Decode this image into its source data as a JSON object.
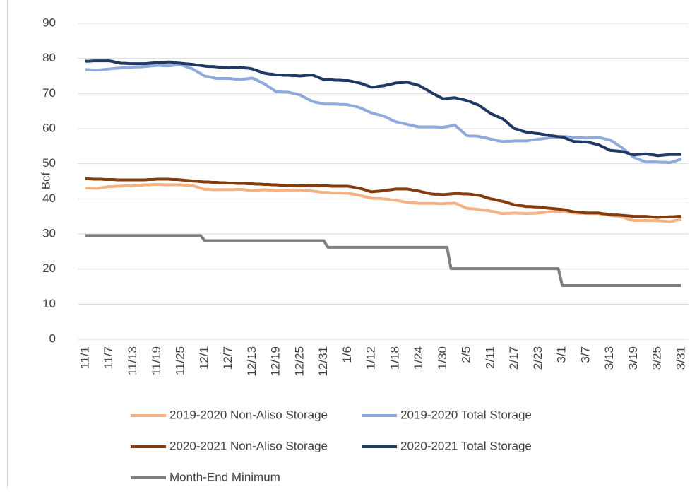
{
  "chart_data": {
    "type": "line",
    "y_label": "Bcf",
    "ylim": [
      0,
      90
    ],
    "yticks": [
      0,
      10,
      20,
      30,
      40,
      50,
      60,
      70,
      80,
      90
    ],
    "grid": true,
    "categories": [
      "11/1",
      null,
      null,
      null,
      null,
      null,
      "11/7",
      null,
      null,
      null,
      null,
      null,
      "11/13",
      null,
      null,
      null,
      null,
      null,
      "11/19",
      null,
      null,
      null,
      null,
      null,
      "11/25",
      null,
      null,
      null,
      null,
      null,
      "12/1",
      null,
      null,
      null,
      null,
      null,
      "12/7",
      null,
      null,
      null,
      null,
      null,
      "12/13",
      null,
      null,
      null,
      null,
      null,
      "12/19",
      null,
      null,
      null,
      null,
      null,
      "12/25",
      null,
      null,
      null,
      null,
      null,
      "12/31",
      null,
      null,
      null,
      null,
      null,
      "1/6",
      null,
      null,
      null,
      null,
      null,
      "1/12",
      null,
      null,
      null,
      null,
      null,
      "1/18",
      null,
      null,
      null,
      null,
      null,
      "1/24",
      null,
      null,
      null,
      null,
      null,
      "1/30",
      null,
      null,
      null,
      null,
      null,
      "2/5",
      null,
      null,
      null,
      null,
      null,
      "2/11",
      null,
      null,
      null,
      null,
      null,
      "2/17",
      null,
      null,
      null,
      null,
      null,
      "2/23",
      null,
      null,
      null,
      null,
      null,
      "3/1",
      null,
      null,
      null,
      null,
      null,
      "3/7",
      null,
      null,
      null,
      null,
      null,
      "3/13",
      null,
      null,
      null,
      null,
      null,
      "3/19",
      null,
      null,
      null,
      null,
      null,
      "3/25",
      null,
      null,
      null,
      null,
      null,
      "3/31"
    ],
    "series": [
      {
        "name": "2019-2020 Non-Aliso Storage",
        "color": "#f4b183",
        "values": [
          43.1,
          43.1,
          43.0,
          43.0,
          43.2,
          43.3,
          43.5,
          43.5,
          43.6,
          43.6,
          43.7,
          43.7,
          43.8,
          43.9,
          43.9,
          44.0,
          44.0,
          44.1,
          44.1,
          44.1,
          44.0,
          44.0,
          44.0,
          44.0,
          44.0,
          43.9,
          43.9,
          43.8,
          43.4,
          43.1,
          42.7,
          42.7,
          42.6,
          42.6,
          42.6,
          42.6,
          42.6,
          42.6,
          42.7,
          42.7,
          42.6,
          42.4,
          42.3,
          42.4,
          42.5,
          42.6,
          42.5,
          42.5,
          42.4,
          42.4,
          42.5,
          42.5,
          42.5,
          42.5,
          42.5,
          42.4,
          42.3,
          42.2,
          42.1,
          41.9,
          41.8,
          41.8,
          41.7,
          41.7,
          41.7,
          41.6,
          41.6,
          41.4,
          41.2,
          41.0,
          40.7,
          40.5,
          40.2,
          40.1,
          40.1,
          40.0,
          39.9,
          39.7,
          39.6,
          39.4,
          39.2,
          39.0,
          38.9,
          38.8,
          38.7,
          38.7,
          38.7,
          38.7,
          38.7,
          38.6,
          38.6,
          38.7,
          38.7,
          38.8,
          38.3,
          37.8,
          37.3,
          37.2,
          37.1,
          37.0,
          36.8,
          36.7,
          36.5,
          36.3,
          36.0,
          35.8,
          35.9,
          35.9,
          36.0,
          35.9,
          35.9,
          35.8,
          35.9,
          35.9,
          36.0,
          36.1,
          36.2,
          36.3,
          36.4,
          36.4,
          36.5,
          36.3,
          36.2,
          36.0,
          35.9,
          35.9,
          35.8,
          35.8,
          35.8,
          35.8,
          35.6,
          35.5,
          35.3,
          35.1,
          35.0,
          34.8,
          34.5,
          34.1,
          33.8,
          33.8,
          33.8,
          33.8,
          33.8,
          33.8,
          33.8,
          33.7,
          33.6,
          33.5,
          33.7,
          34.0,
          34.2
        ]
      },
      {
        "name": "2019-2020 Total Storage",
        "color": "#8faadc",
        "values": [
          76.8,
          76.8,
          76.7,
          76.7,
          76.8,
          76.9,
          77.0,
          77.1,
          77.2,
          77.3,
          77.4,
          77.4,
          77.5,
          77.6,
          77.6,
          77.7,
          77.8,
          77.9,
          78.0,
          78.0,
          77.9,
          77.9,
          78.0,
          78.1,
          78.2,
          77.8,
          77.4,
          77.0,
          76.3,
          75.7,
          75.0,
          74.8,
          74.5,
          74.3,
          74.3,
          74.3,
          74.3,
          74.2,
          74.1,
          74.0,
          74.1,
          74.3,
          74.4,
          73.9,
          73.3,
          72.8,
          72.0,
          71.3,
          70.5,
          70.5,
          70.4,
          70.4,
          70.1,
          69.9,
          69.6,
          69.0,
          68.4,
          67.8,
          67.5,
          67.3,
          67.0,
          67.0,
          67.0,
          67.0,
          66.9,
          66.9,
          66.8,
          66.5,
          66.3,
          66.0,
          65.5,
          65.0,
          64.5,
          64.2,
          63.9,
          63.6,
          63.1,
          62.5,
          62.0,
          61.7,
          61.5,
          61.2,
          61.0,
          60.7,
          60.5,
          60.5,
          60.5,
          60.5,
          60.5,
          60.4,
          60.4,
          60.6,
          60.8,
          61.0,
          60.0,
          59.0,
          58.0,
          57.9,
          57.9,
          57.8,
          57.5,
          57.3,
          57.0,
          56.8,
          56.5,
          56.3,
          56.4,
          56.4,
          56.5,
          56.5,
          56.5,
          56.5,
          56.7,
          56.8,
          57.0,
          57.1,
          57.3,
          57.4,
          57.5,
          57.7,
          57.8,
          57.7,
          57.6,
          57.5,
          57.4,
          57.4,
          57.3,
          57.4,
          57.4,
          57.5,
          57.3,
          57.0,
          56.8,
          56.1,
          55.3,
          54.6,
          53.7,
          52.7,
          51.8,
          51.4,
          50.9,
          50.5,
          50.5,
          50.5,
          50.5,
          50.4,
          50.4,
          50.3,
          50.6,
          51.0,
          51.3
        ]
      },
      {
        "name": "2020-2021 Non-Aliso Storage",
        "color": "#843c0c",
        "values": [
          45.7,
          45.7,
          45.6,
          45.6,
          45.6,
          45.5,
          45.5,
          45.5,
          45.4,
          45.4,
          45.4,
          45.4,
          45.4,
          45.4,
          45.4,
          45.4,
          45.5,
          45.5,
          45.6,
          45.6,
          45.6,
          45.6,
          45.5,
          45.5,
          45.4,
          45.3,
          45.2,
          45.1,
          45.0,
          44.9,
          44.8,
          44.8,
          44.7,
          44.7,
          44.6,
          44.6,
          44.5,
          44.5,
          44.4,
          44.4,
          44.4,
          44.3,
          44.3,
          44.2,
          44.2,
          44.1,
          44.1,
          44.0,
          44.0,
          43.9,
          43.9,
          43.8,
          43.8,
          43.7,
          43.7,
          43.7,
          43.8,
          43.8,
          43.8,
          43.7,
          43.7,
          43.7,
          43.6,
          43.6,
          43.6,
          43.6,
          43.6,
          43.4,
          43.2,
          43.0,
          42.7,
          42.3,
          42.0,
          42.1,
          42.2,
          42.3,
          42.5,
          42.6,
          42.8,
          42.8,
          42.8,
          42.8,
          42.6,
          42.4,
          42.2,
          41.9,
          41.7,
          41.4,
          41.3,
          41.3,
          41.2,
          41.3,
          41.4,
          41.5,
          41.5,
          41.4,
          41.4,
          41.3,
          41.1,
          41.0,
          40.7,
          40.3,
          40.0,
          39.8,
          39.5,
          39.3,
          39.0,
          38.6,
          38.3,
          38.1,
          38.0,
          37.8,
          37.8,
          37.7,
          37.7,
          37.6,
          37.4,
          37.3,
          37.2,
          37.1,
          37.0,
          36.8,
          36.5,
          36.3,
          36.2,
          36.1,
          36.0,
          36.0,
          36.0,
          36.0,
          35.8,
          35.7,
          35.5,
          35.4,
          35.4,
          35.3,
          35.2,
          35.1,
          35.0,
          35.0,
          35.0,
          35.0,
          34.9,
          34.8,
          34.7,
          34.8,
          34.8,
          34.9,
          34.9,
          35.0,
          35.0
        ]
      },
      {
        "name": "2020-2021 Total Storage",
        "color": "#203864",
        "values": [
          79.2,
          79.2,
          79.3,
          79.3,
          79.3,
          79.3,
          79.3,
          79.1,
          78.8,
          78.6,
          78.6,
          78.5,
          78.5,
          78.5,
          78.5,
          78.5,
          78.6,
          78.7,
          78.8,
          78.9,
          78.9,
          79.0,
          78.9,
          78.7,
          78.6,
          78.5,
          78.4,
          78.3,
          78.1,
          78.0,
          77.8,
          77.7,
          77.7,
          77.6,
          77.5,
          77.4,
          77.3,
          77.4,
          77.4,
          77.5,
          77.3,
          77.2,
          77.0,
          76.6,
          76.2,
          75.8,
          75.6,
          75.5,
          75.3,
          75.3,
          75.2,
          75.2,
          75.1,
          75.1,
          75.0,
          75.1,
          75.2,
          75.3,
          74.9,
          74.4,
          74.0,
          73.9,
          73.9,
          73.8,
          73.8,
          73.7,
          73.7,
          73.5,
          73.2,
          73.0,
          72.6,
          72.2,
          71.8,
          71.9,
          72.1,
          72.2,
          72.5,
          72.7,
          73.0,
          73.1,
          73.1,
          73.2,
          72.9,
          72.6,
          72.3,
          71.6,
          71.0,
          70.3,
          69.7,
          69.1,
          68.5,
          68.6,
          68.7,
          68.8,
          68.5,
          68.3,
          68.0,
          67.6,
          67.1,
          66.7,
          65.9,
          65.1,
          64.3,
          63.8,
          63.3,
          62.8,
          61.9,
          60.9,
          60.0,
          59.7,
          59.3,
          59.0,
          58.9,
          58.7,
          58.6,
          58.4,
          58.2,
          58.0,
          57.9,
          57.7,
          57.6,
          57.2,
          56.7,
          56.3,
          56.3,
          56.2,
          56.2,
          56.0,
          55.7,
          55.5,
          54.9,
          54.4,
          53.8,
          53.7,
          53.6,
          53.5,
          53.2,
          52.8,
          52.5,
          52.6,
          52.7,
          52.8,
          52.6,
          52.5,
          52.3,
          52.4,
          52.5,
          52.6,
          52.6,
          52.6,
          52.6
        ]
      },
      {
        "name": "Month-End Minimum",
        "color": "#7f7f7f",
        "values": [
          29.5,
          29.5,
          29.5,
          29.5,
          29.5,
          29.5,
          29.5,
          29.5,
          29.5,
          29.5,
          29.5,
          29.5,
          29.5,
          29.5,
          29.5,
          29.5,
          29.5,
          29.5,
          29.5,
          29.5,
          29.5,
          29.5,
          29.5,
          29.5,
          29.5,
          29.5,
          29.5,
          29.5,
          29.5,
          29.5,
          28.1,
          28.1,
          28.1,
          28.1,
          28.1,
          28.1,
          28.1,
          28.1,
          28.1,
          28.1,
          28.1,
          28.1,
          28.1,
          28.1,
          28.1,
          28.1,
          28.1,
          28.1,
          28.1,
          28.1,
          28.1,
          28.1,
          28.1,
          28.1,
          28.1,
          28.1,
          28.1,
          28.1,
          28.1,
          28.1,
          28.1,
          26.2,
          26.2,
          26.2,
          26.2,
          26.2,
          26.2,
          26.2,
          26.2,
          26.2,
          26.2,
          26.2,
          26.2,
          26.2,
          26.2,
          26.2,
          26.2,
          26.2,
          26.2,
          26.2,
          26.2,
          26.2,
          26.2,
          26.2,
          26.2,
          26.2,
          26.2,
          26.2,
          26.2,
          26.2,
          26.2,
          26.2,
          20.1,
          20.1,
          20.1,
          20.1,
          20.1,
          20.1,
          20.1,
          20.1,
          20.1,
          20.1,
          20.1,
          20.1,
          20.1,
          20.1,
          20.1,
          20.1,
          20.1,
          20.1,
          20.1,
          20.1,
          20.1,
          20.1,
          20.1,
          20.1,
          20.1,
          20.1,
          20.1,
          20.1,
          15.3,
          15.3,
          15.3,
          15.3,
          15.3,
          15.3,
          15.3,
          15.3,
          15.3,
          15.3,
          15.3,
          15.3,
          15.3,
          15.3,
          15.3,
          15.3,
          15.3,
          15.3,
          15.3,
          15.3,
          15.3,
          15.3,
          15.3,
          15.3,
          15.3,
          15.3,
          15.3,
          15.3,
          15.3,
          15.3,
          15.3
        ]
      }
    ]
  }
}
